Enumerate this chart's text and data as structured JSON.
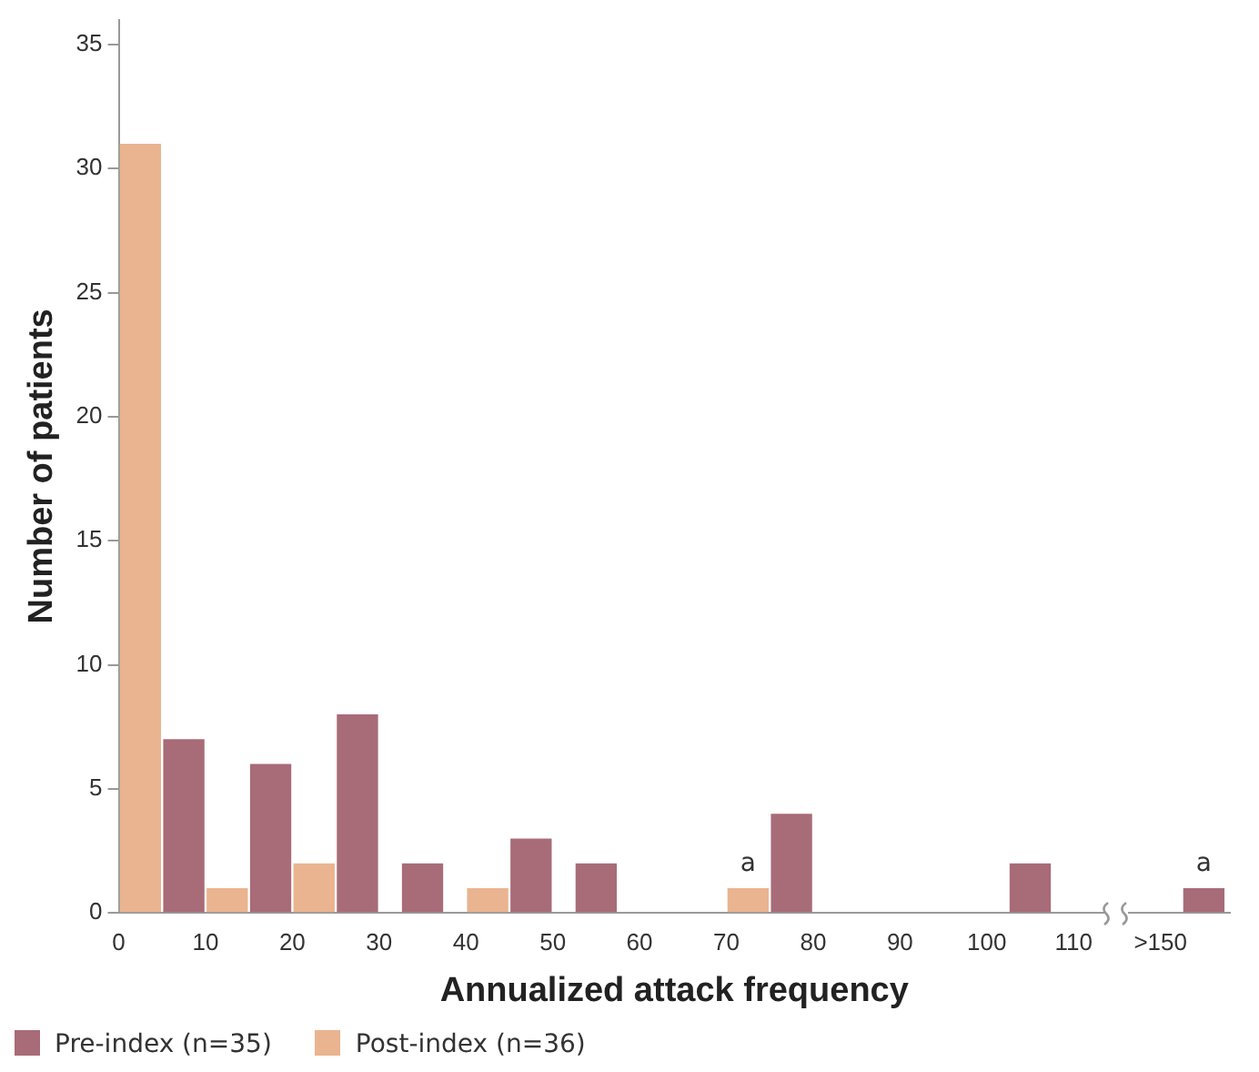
{
  "chart_data": {
    "type": "bar",
    "xlabel": "Annualized attack frequency",
    "ylabel": "Number of patients",
    "series": [
      {
        "name": "Pre-index (n=35)",
        "color": "#a86b78",
        "x": [
          7.5,
          17.5,
          27.5,
          35,
          47.5,
          55,
          77.5,
          105,
          125
        ],
        "values": [
          7,
          6,
          8,
          2,
          3,
          2,
          4,
          2,
          1
        ]
      },
      {
        "name": "Post-index (n=36)",
        "color": "#e9b48f",
        "x": [
          2.5,
          12.5,
          22.5,
          42.5,
          72.5
        ],
        "values": [
          31,
          1,
          2,
          1,
          1
        ]
      }
    ],
    "xlim": [
      0,
      128
    ],
    "xticks": [
      0,
      10,
      20,
      30,
      40,
      50,
      60,
      70,
      80,
      90,
      100,
      110,
      {
        "value": 120,
        "label": ">150"
      }
    ],
    "ylim": [
      0,
      36
    ],
    "yticks": [
      0,
      5,
      10,
      15,
      20,
      25,
      30,
      35
    ],
    "annotations": [
      {
        "text": "a",
        "x": 72.5,
        "y": 1
      },
      {
        "text": "a",
        "x": 125,
        "y": 1
      }
    ],
    "grid": false,
    "legend": "bottom left"
  }
}
